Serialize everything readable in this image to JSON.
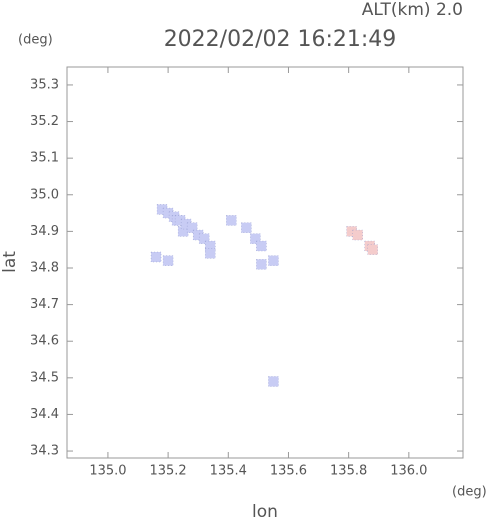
{
  "chart_data": {
    "type": "scatter",
    "title": "2022/02/02 16:21:49",
    "subtitle": "ALT(km) 2.0",
    "y_unit": "(deg)",
    "x_unit": "(deg)",
    "x_label": "lon",
    "y_label": "lat",
    "xlim": [
      134.864,
      136.18
    ],
    "ylim": [
      34.281,
      35.349
    ],
    "xticks": [
      {
        "value": 135.0,
        "label": "135.0"
      },
      135.2,
      135.4,
      135.6,
      135.8,
      {
        "value": 136.0,
        "label": "136.0"
      }
    ],
    "yticks": [
      34.3,
      34.4,
      34.5,
      34.6,
      34.7,
      34.8,
      34.9,
      {
        "value": 35.0,
        "label": "35.0"
      },
      35.1,
      35.2,
      35.3
    ],
    "series": [
      {
        "color": "#c8ccf4",
        "x": [
          135.18,
          135.2,
          135.22,
          135.23,
          135.24,
          135.25,
          135.26,
          135.28,
          135.3,
          135.32,
          135.34,
          135.34,
          135.16,
          135.2,
          135.41,
          135.46,
          135.49,
          135.51,
          135.51,
          135.55,
          135.55
        ],
        "values": [
          34.96,
          34.95,
          34.94,
          34.93,
          34.93,
          34.9,
          34.92,
          34.91,
          34.89,
          34.88,
          34.86,
          34.84,
          34.83,
          34.82,
          34.93,
          34.91,
          34.88,
          34.86,
          34.81,
          34.82,
          34.49
        ]
      },
      {
        "color": "#f4cccc",
        "x": [
          135.81,
          135.83,
          135.87,
          135.88
        ],
        "values": [
          34.9,
          34.89,
          34.86,
          34.85
        ]
      }
    ]
  }
}
